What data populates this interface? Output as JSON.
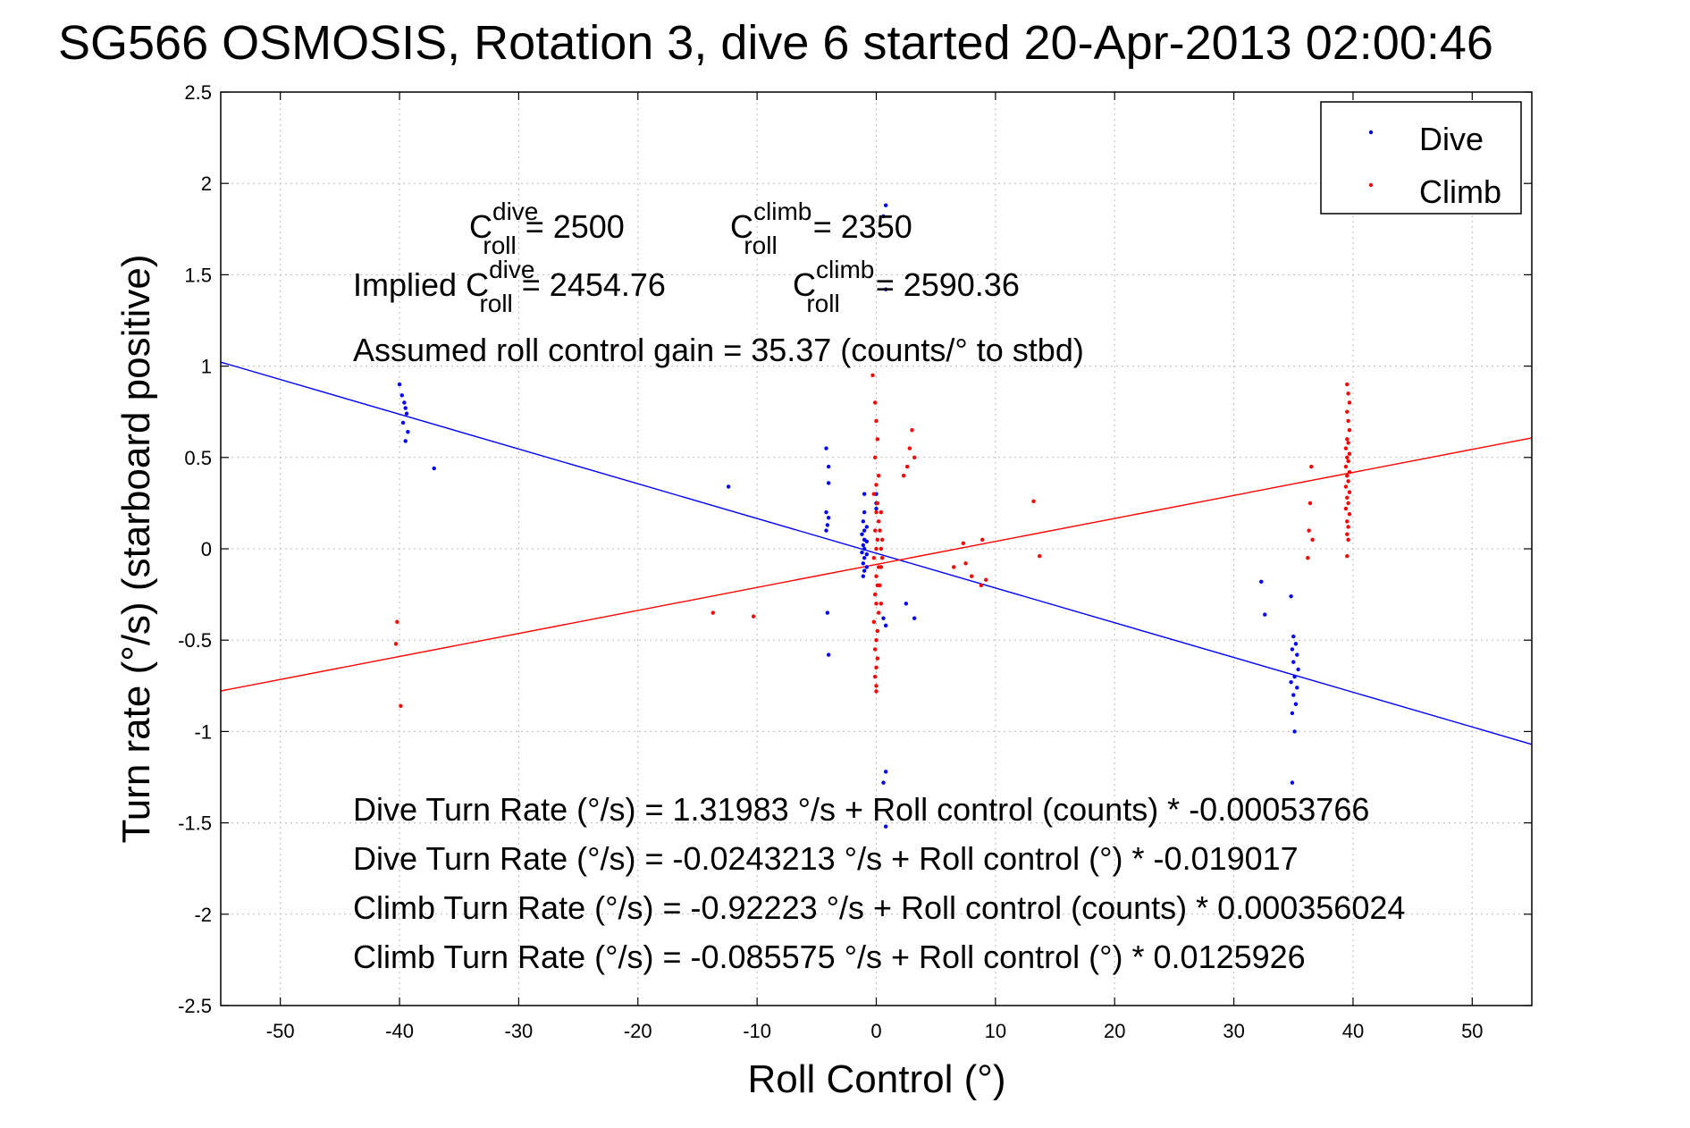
{
  "chart_data": {
    "type": "scatter",
    "title": "SG566 OSMOSIS, Rotation 3, dive 6 started 20-Apr-2013 02:00:46",
    "xlabel": "Roll Control (°)",
    "ylabel": "Turn rate (°/s)  (starboard positive)",
    "xlim": [
      -55,
      55
    ],
    "ylim": [
      -2.5,
      2.5
    ],
    "xticks": [
      -50,
      -40,
      -30,
      -20,
      -10,
      0,
      10,
      20,
      30,
      40,
      50
    ],
    "yticks": [
      -2.5,
      -2,
      -1.5,
      -1,
      -0.5,
      0,
      0.5,
      1,
      1.5,
      2,
      2.5
    ],
    "xtick_labels": [
      "-50",
      "-40",
      "-30",
      "-20",
      "-10",
      "0",
      "10",
      "20",
      "30",
      "40",
      "50"
    ],
    "ytick_labels": [
      "-2.5",
      "-2",
      "-1.5",
      "-1",
      "-0.5",
      "0",
      "0.5",
      "1",
      "1.5",
      "2",
      "2.5"
    ],
    "grid": true,
    "legend_position": "top-right",
    "legend": [
      {
        "name": "Dive",
        "color": "#0000ff"
      },
      {
        "name": "Climb",
        "color": "#ff0000"
      }
    ],
    "series": [
      {
        "name": "Dive",
        "color": "#0000ff",
        "points": [
          [
            -40.0,
            0.9
          ],
          [
            -39.8,
            0.84
          ],
          [
            -39.6,
            0.8
          ],
          [
            -39.5,
            0.77
          ],
          [
            -39.4,
            0.74
          ],
          [
            -39.7,
            0.69
          ],
          [
            -39.3,
            0.64
          ],
          [
            -39.5,
            0.59
          ],
          [
            -37.1,
            0.44
          ],
          [
            -12.4,
            0.34
          ],
          [
            -4.2,
            0.55
          ],
          [
            -4.0,
            0.45
          ],
          [
            -4.0,
            0.36
          ],
          [
            -4.2,
            0.2
          ],
          [
            -4.0,
            0.17
          ],
          [
            -4.1,
            0.13
          ],
          [
            -4.2,
            0.1
          ],
          [
            -4.1,
            -0.35
          ],
          [
            -4.0,
            -0.58
          ],
          [
            -1.0,
            0.3
          ],
          [
            -1.0,
            0.2
          ],
          [
            -1.1,
            0.15
          ],
          [
            -1.0,
            0.1
          ],
          [
            -1.2,
            0.08
          ],
          [
            -1.0,
            0.05
          ],
          [
            -1.1,
            0.02
          ],
          [
            -1.0,
            0.0
          ],
          [
            -1.2,
            -0.02
          ],
          [
            -1.0,
            -0.05
          ],
          [
            -1.1,
            -0.08
          ],
          [
            -1.0,
            -0.12
          ],
          [
            -1.1,
            -0.15
          ],
          [
            -0.8,
            0.12
          ],
          [
            -0.8,
            0.04
          ],
          [
            -0.8,
            -0.03
          ],
          [
            -0.8,
            -0.1
          ],
          [
            0.0,
            0.3
          ],
          [
            0.0,
            0.25
          ],
          [
            0.0,
            0.22
          ],
          [
            0.8,
            1.88
          ],
          [
            0.6,
            1.82
          ],
          [
            0.8,
            1.42
          ],
          [
            0.6,
            -0.38
          ],
          [
            0.8,
            -0.42
          ],
          [
            0.8,
            -1.22
          ],
          [
            0.6,
            -1.28
          ],
          [
            0.8,
            -1.52
          ],
          [
            2.5,
            -0.3
          ],
          [
            3.2,
            -0.38
          ],
          [
            32.3,
            -0.18
          ],
          [
            32.6,
            -0.36
          ],
          [
            34.8,
            -0.26
          ],
          [
            35.0,
            -0.48
          ],
          [
            35.2,
            -0.52
          ],
          [
            34.9,
            -0.55
          ],
          [
            35.3,
            -0.58
          ],
          [
            35.0,
            -0.62
          ],
          [
            35.4,
            -0.66
          ],
          [
            35.1,
            -0.7
          ],
          [
            34.8,
            -0.73
          ],
          [
            35.3,
            -0.76
          ],
          [
            35.0,
            -0.8
          ],
          [
            35.2,
            -0.85
          ],
          [
            34.9,
            -0.9
          ],
          [
            35.1,
            -1.0
          ],
          [
            34.9,
            -1.28
          ]
        ],
        "fit_line": {
          "x": [
            -55,
            55
          ],
          "y": [
            1.0217,
            -1.0703
          ]
        }
      },
      {
        "name": "Climb",
        "color": "#ff0000",
        "points": [
          [
            -0.3,
            0.95
          ],
          [
            -0.1,
            0.8
          ],
          [
            0.0,
            0.7
          ],
          [
            0.1,
            0.6
          ],
          [
            -0.1,
            0.5
          ],
          [
            0.2,
            0.4
          ],
          [
            0.0,
            0.35
          ],
          [
            -0.2,
            0.3
          ],
          [
            0.1,
            0.25
          ],
          [
            0.0,
            0.2
          ],
          [
            0.2,
            0.15
          ],
          [
            -0.1,
            0.1
          ],
          [
            0.1,
            0.05
          ],
          [
            0.0,
            0.0
          ],
          [
            -0.2,
            -0.05
          ],
          [
            0.2,
            -0.1
          ],
          [
            0.0,
            -0.15
          ],
          [
            0.1,
            -0.2
          ],
          [
            -0.1,
            -0.25
          ],
          [
            0.0,
            -0.3
          ],
          [
            0.2,
            -0.35
          ],
          [
            -0.2,
            -0.4
          ],
          [
            0.1,
            -0.45
          ],
          [
            0.0,
            -0.5
          ],
          [
            -0.1,
            -0.55
          ],
          [
            0.1,
            -0.6
          ],
          [
            0.0,
            -0.65
          ],
          [
            -0.1,
            -0.7
          ],
          [
            0.0,
            -0.75
          ],
          [
            0.0,
            -0.78
          ],
          [
            0.4,
            0.2
          ],
          [
            0.3,
            0.1
          ],
          [
            0.4,
            0.0
          ],
          [
            0.4,
            -0.1
          ],
          [
            0.3,
            -0.2
          ],
          [
            0.4,
            -0.3
          ],
          [
            0.5,
            0.05
          ],
          [
            0.5,
            -0.05
          ],
          [
            2.3,
            0.4
          ],
          [
            2.8,
            0.55
          ],
          [
            3.0,
            0.65
          ],
          [
            3.2,
            0.5
          ],
          [
            2.6,
            0.45
          ],
          [
            -40.2,
            -0.4
          ],
          [
            -40.3,
            -0.52
          ],
          [
            -39.9,
            -0.86
          ],
          [
            -13.7,
            -0.35
          ],
          [
            -10.3,
            -0.37
          ],
          [
            6.5,
            -0.1
          ],
          [
            7.5,
            -0.08
          ],
          [
            8.0,
            -0.15
          ],
          [
            8.8,
            -0.2
          ],
          [
            9.2,
            -0.17
          ],
          [
            7.3,
            0.03
          ],
          [
            8.9,
            0.05
          ],
          [
            13.2,
            0.26
          ],
          [
            13.7,
            -0.04
          ],
          [
            36.5,
            0.45
          ],
          [
            36.4,
            0.25
          ],
          [
            36.3,
            0.1
          ],
          [
            36.6,
            0.05
          ],
          [
            36.2,
            -0.05
          ],
          [
            39.5,
            0.9
          ],
          [
            39.6,
            0.85
          ],
          [
            39.7,
            0.8
          ],
          [
            39.5,
            0.75
          ],
          [
            39.6,
            0.7
          ],
          [
            39.7,
            0.65
          ],
          [
            39.5,
            0.6
          ],
          [
            39.6,
            0.58
          ],
          [
            39.4,
            0.55
          ],
          [
            39.7,
            0.52
          ],
          [
            39.5,
            0.5
          ],
          [
            39.6,
            0.48
          ],
          [
            39.4,
            0.45
          ],
          [
            39.7,
            0.42
          ],
          [
            39.5,
            0.4
          ],
          [
            39.6,
            0.37
          ],
          [
            39.4,
            0.34
          ],
          [
            39.7,
            0.31
          ],
          [
            39.5,
            0.28
          ],
          [
            39.6,
            0.25
          ],
          [
            39.4,
            0.22
          ],
          [
            39.7,
            0.19
          ],
          [
            39.5,
            0.15
          ],
          [
            39.6,
            0.12
          ],
          [
            39.5,
            0.08
          ],
          [
            39.6,
            0.05
          ],
          [
            39.5,
            -0.04
          ]
        ],
        "fit_line": {
          "x": [
            -55,
            55
          ],
          "y": [
            -0.7782,
            0.6071
          ]
        }
      }
    ],
    "annotations": [
      {
        "base": "C",
        "sup": "dive",
        "sub": "roll",
        "prefix": "",
        "suffix": " = 2500"
      },
      {
        "base": "C",
        "sup": "climb",
        "sub": "roll",
        "prefix": "",
        "suffix": " = 2350"
      },
      {
        "base": "C",
        "sup": "dive",
        "sub": "roll",
        "prefix": "Implied ",
        "suffix": " = 2454.76"
      },
      {
        "base": "C",
        "sup": "climb",
        "sub": "roll",
        "prefix": "",
        "suffix": " = 2590.36"
      },
      {
        "text": "Assumed roll control gain = 35.37 (counts/° to stbd)"
      },
      {
        "text": "Dive Turn Rate (°/s) = 1.31983 °/s + Roll control (counts) * -0.00053766"
      },
      {
        "text": "Dive Turn Rate (°/s) = -0.0243213 °/s + Roll control (°) * -0.019017"
      },
      {
        "text": "Climb Turn Rate (°/s) = -0.92223 °/s + Roll control (counts) * 0.000356024"
      },
      {
        "text": "Climb Turn Rate (°/s) = -0.085575 °/s + Roll control (°) * 0.0125926"
      }
    ]
  }
}
